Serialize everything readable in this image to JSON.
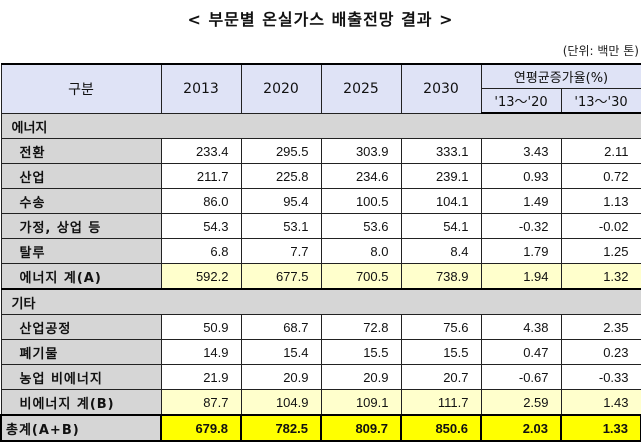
{
  "title": "< 부문별 온실가스 배출전망 결과 >",
  "unit": "(단위: 백만 톤)",
  "header": {
    "category": "구분",
    "years": [
      "2013",
      "2020",
      "2025",
      "2030"
    ],
    "growth": "연평균증가율(%)",
    "growth_periods": [
      "'13～'20",
      "'13～'30"
    ]
  },
  "sections": [
    {
      "name": "에너지",
      "rows": [
        {
          "label": "전환",
          "values": [
            "233.4",
            "295.5",
            "303.9",
            "333.1",
            "3.43",
            "2.11"
          ]
        },
        {
          "label": "산업",
          "values": [
            "211.7",
            "225.8",
            "234.6",
            "239.1",
            "0.93",
            "0.72"
          ]
        },
        {
          "label": "수송",
          "values": [
            "86.0",
            "95.4",
            "100.5",
            "104.1",
            "1.49",
            "1.13"
          ]
        },
        {
          "label": "가정, 상업 등",
          "values": [
            "54.3",
            "53.1",
            "53.6",
            "54.1",
            "-0.32",
            "-0.02"
          ]
        },
        {
          "label": "탈루",
          "values": [
            "6.8",
            "7.7",
            "8.0",
            "8.4",
            "1.79",
            "1.25"
          ]
        }
      ],
      "subtotal": {
        "label": "에너지 계(A)",
        "values": [
          "592.2",
          "677.5",
          "700.5",
          "738.9",
          "1.94",
          "1.32"
        ]
      }
    },
    {
      "name": "기타",
      "rows": [
        {
          "label": "산업공정",
          "values": [
            "50.9",
            "68.7",
            "72.8",
            "75.6",
            "4.38",
            "2.35"
          ]
        },
        {
          "label": "폐기물",
          "values": [
            "14.9",
            "15.4",
            "15.5",
            "15.5",
            "0.47",
            "0.23"
          ]
        },
        {
          "label": "농업 비에너지",
          "values": [
            "21.9",
            "20.9",
            "20.9",
            "20.7",
            "-0.67",
            "-0.33"
          ]
        }
      ],
      "subtotal": {
        "label": "비에너지 계(B)",
        "values": [
          "87.7",
          "104.9",
          "109.1",
          "111.7",
          "2.59",
          "1.43"
        ]
      }
    }
  ],
  "total": {
    "label": "총계(A+B)",
    "values": [
      "679.8",
      "782.5",
      "809.7",
      "850.6",
      "2.03",
      "1.33"
    ]
  },
  "colors": {
    "header": "#dfe3f6",
    "label": "#d6d6d6",
    "subtotal": "#ffffcc",
    "total": "#ffff00"
  }
}
